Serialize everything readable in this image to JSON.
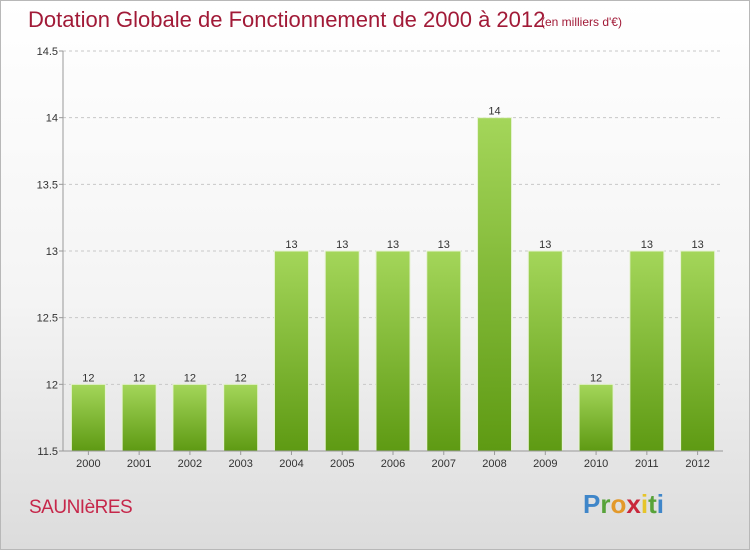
{
  "header": {
    "title": "Dotation Globale de Fonctionnement de 2000 à 2012",
    "unit": "(en milliers d'€)"
  },
  "footer": {
    "commune": "SAUNIèRES",
    "brand": "Proxiti",
    "brand_letters": [
      {
        "ch": "P",
        "color": "#3f86c9"
      },
      {
        "ch": "r",
        "color": "#58a33a"
      },
      {
        "ch": "o",
        "color": "#e3992a"
      },
      {
        "ch": "x",
        "color": "#c9273b"
      },
      {
        "ch": "i",
        "color": "#e6c52a"
      },
      {
        "ch": "t",
        "color": "#58a33a"
      },
      {
        "ch": "i",
        "color": "#3f86c9"
      }
    ]
  },
  "colors": {
    "bar_top": "#a4d65a",
    "bar_bottom": "#5e9a13",
    "axis": "#999999",
    "grid": "#c8c8c8",
    "text": "#333333",
    "title": "#a11a37"
  },
  "chart_data": {
    "type": "bar",
    "title": "Dotation Globale de Fonctionnement de 2000 à 2012",
    "subtitle": "(en milliers d'€)",
    "xlabel": "",
    "ylabel": "",
    "categories": [
      "2000",
      "2001",
      "2002",
      "2003",
      "2004",
      "2005",
      "2006",
      "2007",
      "2008",
      "2009",
      "2010",
      "2011",
      "2012"
    ],
    "values": [
      12,
      12,
      12,
      12,
      13,
      13,
      13,
      13,
      14,
      13,
      12,
      13,
      13
    ],
    "labels": [
      "12",
      "12",
      "12",
      "12",
      "13",
      "13",
      "13",
      "13",
      "14",
      "13",
      "12",
      "13",
      "13"
    ],
    "ylim": [
      11.5,
      14.5
    ],
    "yticks": [
      11.5,
      12,
      12.5,
      13,
      13.5,
      14,
      14.5
    ],
    "ytick_labels": [
      "11.5",
      "12",
      "12.5",
      "13",
      "13.5",
      "14",
      "14.5"
    ],
    "grid": true
  }
}
